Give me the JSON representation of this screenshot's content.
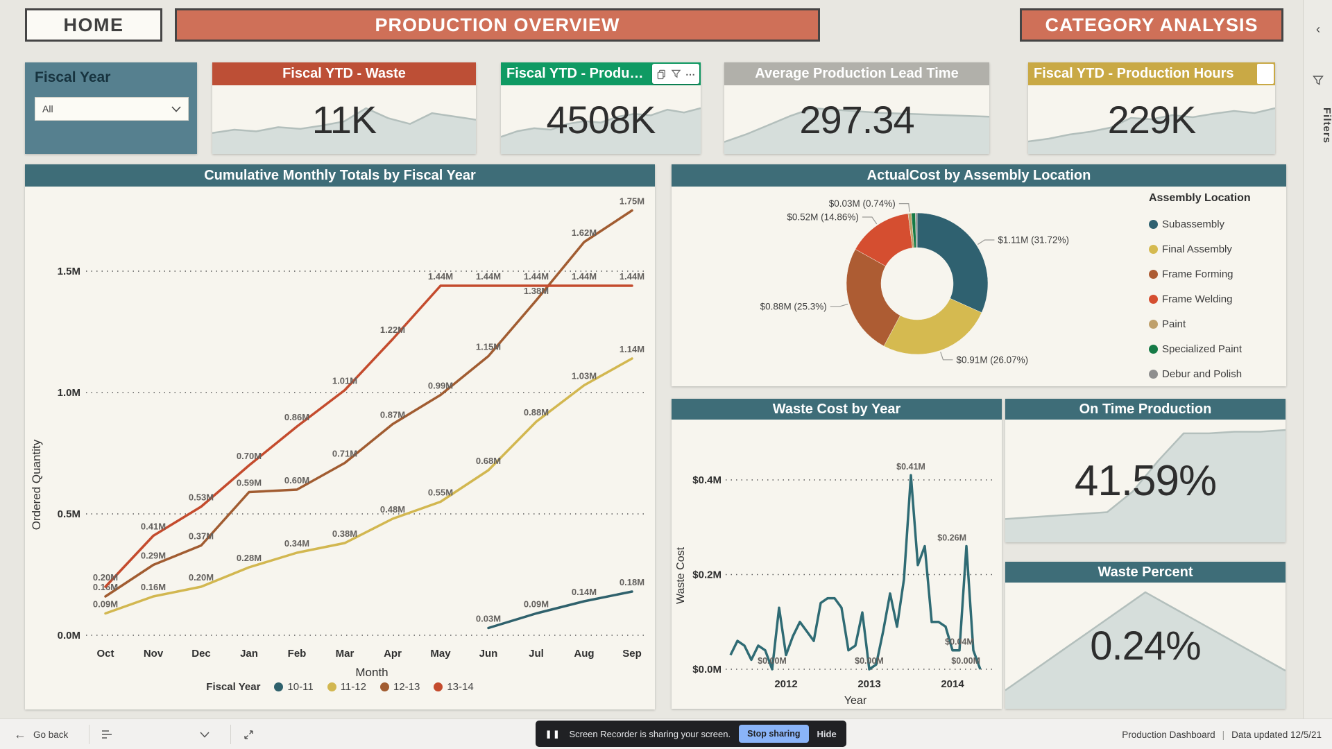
{
  "topbar": {
    "home": "HOME",
    "title": "PRODUCTION OVERVIEW",
    "category": "CATEGORY ANALYSIS"
  },
  "filters_rail": {
    "label": "Filters"
  },
  "slicer": {
    "title": "Fiscal Year",
    "value": "All"
  },
  "kpi": [
    {
      "title": "Fiscal YTD - Waste",
      "value": "11K",
      "header_color": "#bd4f36",
      "spark": [
        2.2,
        2.6,
        2.4,
        2.9,
        2.7,
        3.1,
        3.6,
        5.2,
        4.0,
        3.3,
        4.6,
        4.2,
        3.8
      ]
    },
    {
      "title": "Fiscal YTD - Production",
      "value": "4508K",
      "header_color": "#0f9a63",
      "spark": [
        2.0,
        2.8,
        3.2,
        3.0,
        3.8,
        4.2,
        4.0,
        4.8,
        5.2,
        5.0,
        5.8,
        5.4,
        6.0
      ]
    },
    {
      "title": "Average Production Lead Time",
      "value": "297.34",
      "header_color": "#b1b0aa",
      "spark": [
        1.2,
        2.2,
        3.4,
        4.6,
        5.6,
        5.4,
        5.2,
        5.0,
        4.9,
        4.8,
        4.7,
        4.6,
        4.5
      ]
    },
    {
      "title": "Fiscal YTD - Production Hours",
      "value": "229K",
      "header_color": "#c9a945",
      "spark": [
        1.4,
        1.8,
        2.4,
        2.8,
        3.4,
        4.8,
        4.6,
        5.2,
        4.9,
        5.4,
        5.8,
        5.5,
        6.2
      ]
    }
  ],
  "on_time": {
    "title": "On Time Production",
    "value": "41.59%",
    "spark": [
      1.2,
      1.3,
      1.4,
      1.5,
      1.6,
      2.8,
      4.6,
      6.2,
      6.2,
      6.3,
      6.3,
      6.4
    ]
  },
  "waste_pct": {
    "title": "Waste Percent",
    "value": "0.24%",
    "spark": [
      0.8,
      1.8,
      2.8,
      3.8,
      4.8,
      5.8,
      5.0,
      4.2,
      3.4,
      2.6,
      1.8
    ]
  },
  "status_bar": {
    "go_back": "Go back",
    "notification": {
      "text": "Screen Recorder is sharing your screen.",
      "stop": "Stop sharing",
      "hide": "Hide"
    },
    "right_title": "Production Dashboard",
    "divider": "|",
    "right_updated": "Data updated 12/5/21"
  },
  "chart_data": [
    {
      "type": "line",
      "title": "Cumulative Monthly Totals by Fiscal Year",
      "xlabel": "Month",
      "ylabel": "Ordered Quantity",
      "categories": [
        "Oct",
        "Nov",
        "Dec",
        "Jan",
        "Feb",
        "Mar",
        "Apr",
        "May",
        "Jun",
        "Jul",
        "Aug",
        "Sep"
      ],
      "ylim": [
        0,
        1.75
      ],
      "yticks": [
        {
          "v": 0,
          "label": "0.0M"
        },
        {
          "v": 0.5,
          "label": "0.5M"
        },
        {
          "v": 1.0,
          "label": "1.0M"
        },
        {
          "v": 1.5,
          "label": "1.5M"
        }
      ],
      "grid": "dotted-horizontal",
      "legend_title": "Fiscal Year",
      "legend_position": "bottom",
      "series": [
        {
          "name": "10-11",
          "color": "#2f616c",
          "values": [
            null,
            null,
            null,
            null,
            null,
            null,
            null,
            null,
            0.03,
            0.09,
            0.14,
            0.18
          ]
        },
        {
          "name": "11-12",
          "color": "#d2b750",
          "values": [
            0.09,
            0.16,
            0.2,
            0.28,
            0.34,
            0.38,
            0.48,
            0.55,
            0.68,
            0.88,
            1.03,
            1.14
          ]
        },
        {
          "name": "12-13",
          "color": "#a15c31",
          "values": [
            0.16,
            0.29,
            0.37,
            0.59,
            0.6,
            0.71,
            0.87,
            0.99,
            1.15,
            1.38,
            1.62,
            1.75
          ]
        },
        {
          "name": "13-14",
          "color": "#c44b2d",
          "values": [
            0.2,
            0.41,
            0.53,
            0.7,
            0.86,
            1.01,
            1.22,
            1.44,
            1.44,
            1.44,
            1.44,
            1.44
          ]
        }
      ]
    },
    {
      "type": "pie",
      "title": "ActualCost by Assembly Location",
      "legend_title": "Assembly Location",
      "legend_position": "right",
      "items": [
        {
          "name": "Subassembly",
          "color": "#2f6170",
          "pct": 31.72,
          "label": "$1.11M (31.72%)"
        },
        {
          "name": "Final Assembly",
          "color": "#d5ba50",
          "pct": 26.07,
          "label": "$0.91M (26.07%)"
        },
        {
          "name": "Frame Forming",
          "color": "#ad5c33",
          "pct": 25.3,
          "label": "$0.88M (25.3%)"
        },
        {
          "name": "Frame Welding",
          "color": "#d54e30",
          "pct": 14.86,
          "label": "$0.52M (14.86%)"
        },
        {
          "name": "Paint",
          "color": "#bfa06b",
          "pct": 0.74,
          "label": "$0.03M (0.74%)"
        },
        {
          "name": "Specialized Paint",
          "color": "#157a46",
          "pct": 0.9,
          "label": null
        },
        {
          "name": "Debur and Polish",
          "color": "#8e8e8e",
          "pct": 0.41,
          "label": null
        }
      ]
    },
    {
      "type": "line",
      "title": "Waste Cost by Year",
      "xlabel": "Year",
      "ylabel": "Waste Cost",
      "color": "#2f6b74",
      "ylim": [
        0,
        0.45
      ],
      "yticks": [
        {
          "v": 0,
          "label": "$0.0M"
        },
        {
          "v": 0.2,
          "label": "$0.2M"
        },
        {
          "v": 0.4,
          "label": "$0.4M"
        }
      ],
      "grid": "dotted-horizontal",
      "values": [
        0.03,
        0.06,
        0.05,
        0.02,
        0.05,
        0.04,
        0.0,
        0.13,
        0.03,
        0.07,
        0.1,
        0.08,
        0.06,
        0.14,
        0.15,
        0.15,
        0.13,
        0.04,
        0.05,
        0.12,
        0.0,
        0.01,
        0.08,
        0.16,
        0.09,
        0.19,
        0.41,
        0.22,
        0.26,
        0.1,
        0.1,
        0.09,
        0.04,
        0.04,
        0.26,
        0.04,
        0.0
      ],
      "point_labels": {
        "6": "$0.00M",
        "20": "$0.00M",
        "26": "$0.41M",
        "33": "$0.04M",
        "34": "$0.26M",
        "36": "$0.00M"
      },
      "xticks": [
        {
          "idx": 8,
          "label": "2012"
        },
        {
          "idx": 20,
          "label": "2013"
        },
        {
          "idx": 32,
          "label": "2014"
        }
      ]
    }
  ]
}
